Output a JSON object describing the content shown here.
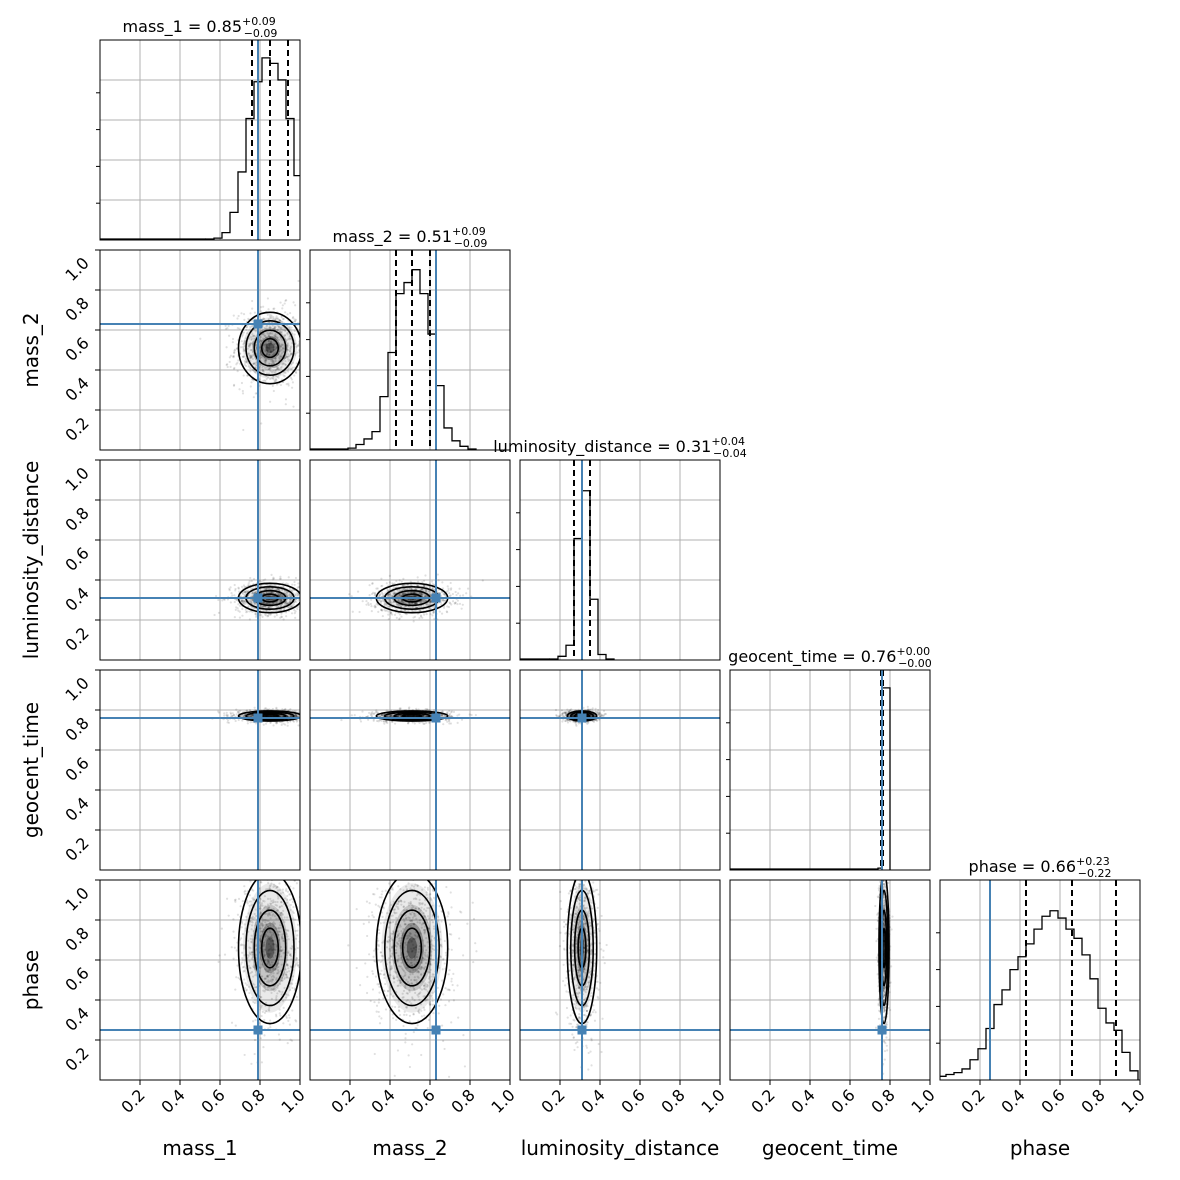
{
  "chart_data": {
    "type": "corner",
    "parameters": [
      "mass_1",
      "mass_2",
      "luminosity_distance",
      "geocent_time",
      "phase"
    ],
    "range": [
      0,
      1
    ],
    "tick_labels": [
      "0.2",
      "0.4",
      "0.6",
      "0.8",
      "1.0"
    ],
    "ylabels": [
      "mass_2",
      "luminosity_distance",
      "geocent_time",
      "phase"
    ],
    "injection": [
      0.79,
      0.63,
      0.31,
      0.76,
      0.25
    ],
    "titles": [
      {
        "name": "mass_1",
        "eq": " = 0.85",
        "plus": "+0.09",
        "minus": "−0.09"
      },
      {
        "name": "mass_2",
        "eq": " = 0.51",
        "plus": "+0.09",
        "minus": "−0.09"
      },
      {
        "name": "luminosity_distance",
        "eq": " = 0.31",
        "plus": "+0.04",
        "minus": "−0.04"
      },
      {
        "name": "geocent_time",
        "eq": " = 0.76",
        "plus": "+0.00",
        "minus": "−0.00"
      },
      {
        "name": "phase",
        "eq": " = 0.66",
        "plus": "+0.23",
        "minus": "−0.22"
      }
    ],
    "marginals": [
      {
        "quantiles": [
          0.76,
          0.85,
          0.94
        ],
        "bin_centers": [
          0.55,
          0.59,
          0.63,
          0.67,
          0.71,
          0.75,
          0.79,
          0.83,
          0.87,
          0.91,
          0.95,
          0.99
        ],
        "counts": [
          0.005,
          0.01,
          0.04,
          0.15,
          0.37,
          0.66,
          0.86,
          0.99,
          0.96,
          0.87,
          0.66,
          0.35
        ]
      },
      {
        "quantiles": [
          0.43,
          0.51,
          0.6
        ],
        "bin_centers": [
          0.21,
          0.25,
          0.29,
          0.33,
          0.37,
          0.41,
          0.45,
          0.49,
          0.53,
          0.57,
          0.61,
          0.65,
          0.69,
          0.73,
          0.77,
          0.81
        ],
        "counts": [
          0.01,
          0.03,
          0.06,
          0.1,
          0.29,
          0.53,
          0.85,
          0.91,
          0.98,
          0.85,
          0.63,
          0.35,
          0.12,
          0.05,
          0.02,
          0.005
        ]
      },
      {
        "quantiles": [
          0.27,
          0.31,
          0.35
        ],
        "bin_centers": [
          0.17,
          0.21,
          0.25,
          0.29,
          0.33,
          0.37,
          0.41,
          0.45
        ],
        "counts": [
          0.005,
          0.02,
          0.08,
          0.66,
          0.92,
          0.33,
          0.03,
          0.005
        ]
      },
      {
        "quantiles": [
          0.755,
          0.76,
          0.765
        ],
        "bin_centers": [
          0.75,
          0.77,
          0.79
        ],
        "counts": [
          0.01,
          0.99,
          0.99
        ]
      },
      {
        "quantiles": [
          0.43,
          0.66,
          0.88
        ],
        "bin_centers": [
          0.01,
          0.05,
          0.09,
          0.13,
          0.17,
          0.21,
          0.25,
          0.29,
          0.33,
          0.37,
          0.41,
          0.45,
          0.49,
          0.53,
          0.57,
          0.61,
          0.65,
          0.69,
          0.73,
          0.77,
          0.81,
          0.85,
          0.89,
          0.93,
          0.97
        ],
        "counts": [
          0.02,
          0.03,
          0.04,
          0.06,
          0.11,
          0.17,
          0.28,
          0.41,
          0.49,
          0.6,
          0.67,
          0.74,
          0.82,
          0.89,
          0.92,
          0.88,
          0.82,
          0.77,
          0.68,
          0.55,
          0.39,
          0.31,
          0.27,
          0.15,
          0.05
        ]
      }
    ],
    "posteriors": {
      "mass_1": {
        "mean": 0.85,
        "sd": 0.075
      },
      "mass_2": {
        "mean": 0.51,
        "sd": 0.085
      },
      "luminosity_distance": {
        "mean": 0.31,
        "sd": 0.035
      },
      "geocent_time": {
        "mean": 0.77,
        "sd": 0.012
      },
      "phase": {
        "mean": 0.66,
        "sd": 0.18
      }
    },
    "colors": {
      "injection": "#4682b4",
      "hist": "#000000",
      "grid": "#b0b0b0",
      "density": "#000000"
    }
  }
}
